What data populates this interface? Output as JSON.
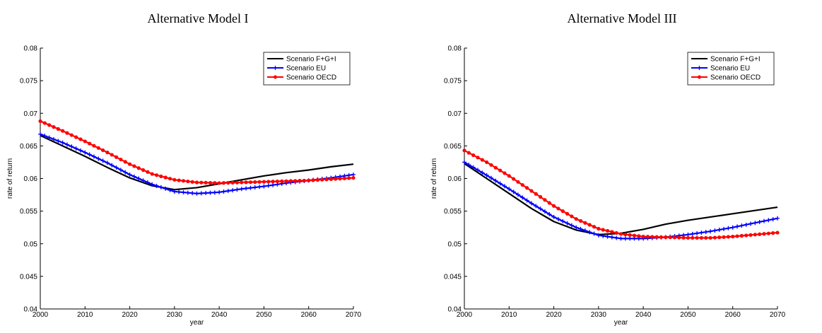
{
  "colors": {
    "fgi": "#000000",
    "eu": "#0000ff",
    "oecd": "#ff0000"
  },
  "chart_data": [
    {
      "type": "line",
      "title": "Alternative Model I",
      "xlabel": "year",
      "ylabel": "rate of return",
      "xlim": [
        2000,
        2070
      ],
      "ylim": [
        0.04,
        0.08
      ],
      "xticks": [
        "2000",
        "2010",
        "2020",
        "2030",
        "2040",
        "2050",
        "2060",
        "2070"
      ],
      "yticks": [
        "0.04",
        "0.045",
        "0.05",
        "0.055",
        "0.06",
        "0.065",
        "0.07",
        "0.075",
        "0.08"
      ],
      "grid": false,
      "legend": "top-right",
      "x": [
        2000,
        2005,
        2010,
        2015,
        2020,
        2025,
        2030,
        2035,
        2040,
        2045,
        2050,
        2055,
        2060,
        2065,
        2070
      ],
      "series": [
        {
          "name": "Scenario F+G+I",
          "color": "#000000",
          "marker": "none",
          "values": [
            0.0666,
            0.065,
            0.0634,
            0.0617,
            0.0601,
            0.0589,
            0.0583,
            0.0586,
            0.0592,
            0.0598,
            0.0604,
            0.0609,
            0.0613,
            0.0618,
            0.0622
          ]
        },
        {
          "name": "Scenario EU",
          "color": "#0000ff",
          "marker": "plus",
          "values": [
            0.0668,
            0.0655,
            0.064,
            0.0624,
            0.0606,
            0.0591,
            0.058,
            0.0577,
            0.0579,
            0.0584,
            0.0588,
            0.0593,
            0.0597,
            0.0601,
            0.0606
          ]
        },
        {
          "name": "Scenario OECD",
          "color": "#ff0000",
          "marker": "dot",
          "values": [
            0.0688,
            0.0673,
            0.0657,
            0.064,
            0.0622,
            0.0607,
            0.0598,
            0.0594,
            0.0593,
            0.0594,
            0.0595,
            0.0596,
            0.0597,
            0.0599,
            0.0601
          ]
        }
      ]
    },
    {
      "type": "line",
      "title": "Alternative Model III",
      "xlabel": "year",
      "ylabel": "rate of return",
      "xlim": [
        2000,
        2070
      ],
      "ylim": [
        0.04,
        0.08
      ],
      "xticks": [
        "2000",
        "2010",
        "2020",
        "2030",
        "2040",
        "2050",
        "2060",
        "2070"
      ],
      "yticks": [
        "0.04",
        "0.045",
        "0.05",
        "0.055",
        "0.06",
        "0.065",
        "0.07",
        "0.075",
        "0.08"
      ],
      "grid": false,
      "legend": "top-right",
      "x": [
        2000,
        2005,
        2010,
        2015,
        2020,
        2025,
        2030,
        2035,
        2040,
        2045,
        2050,
        2055,
        2060,
        2065,
        2070
      ],
      "series": [
        {
          "name": "Scenario F+G+I",
          "color": "#000000",
          "marker": "none",
          "values": [
            0.0623,
            0.06,
            0.0577,
            0.0554,
            0.0534,
            0.0521,
            0.0514,
            0.0516,
            0.0522,
            0.053,
            0.0536,
            0.0541,
            0.0546,
            0.0551,
            0.0556
          ]
        },
        {
          "name": "Scenario EU",
          "color": "#0000ff",
          "marker": "plus",
          "values": [
            0.0625,
            0.0605,
            0.0584,
            0.0562,
            0.0541,
            0.0525,
            0.0513,
            0.0508,
            0.0508,
            0.051,
            0.0514,
            0.0519,
            0.0525,
            0.0532,
            0.0539
          ]
        },
        {
          "name": "Scenario OECD",
          "color": "#ff0000",
          "marker": "dot",
          "values": [
            0.0643,
            0.0625,
            0.0604,
            0.0581,
            0.0558,
            0.0538,
            0.0523,
            0.0515,
            0.0511,
            0.051,
            0.0509,
            0.0509,
            0.0511,
            0.0514,
            0.0517
          ]
        }
      ]
    }
  ]
}
